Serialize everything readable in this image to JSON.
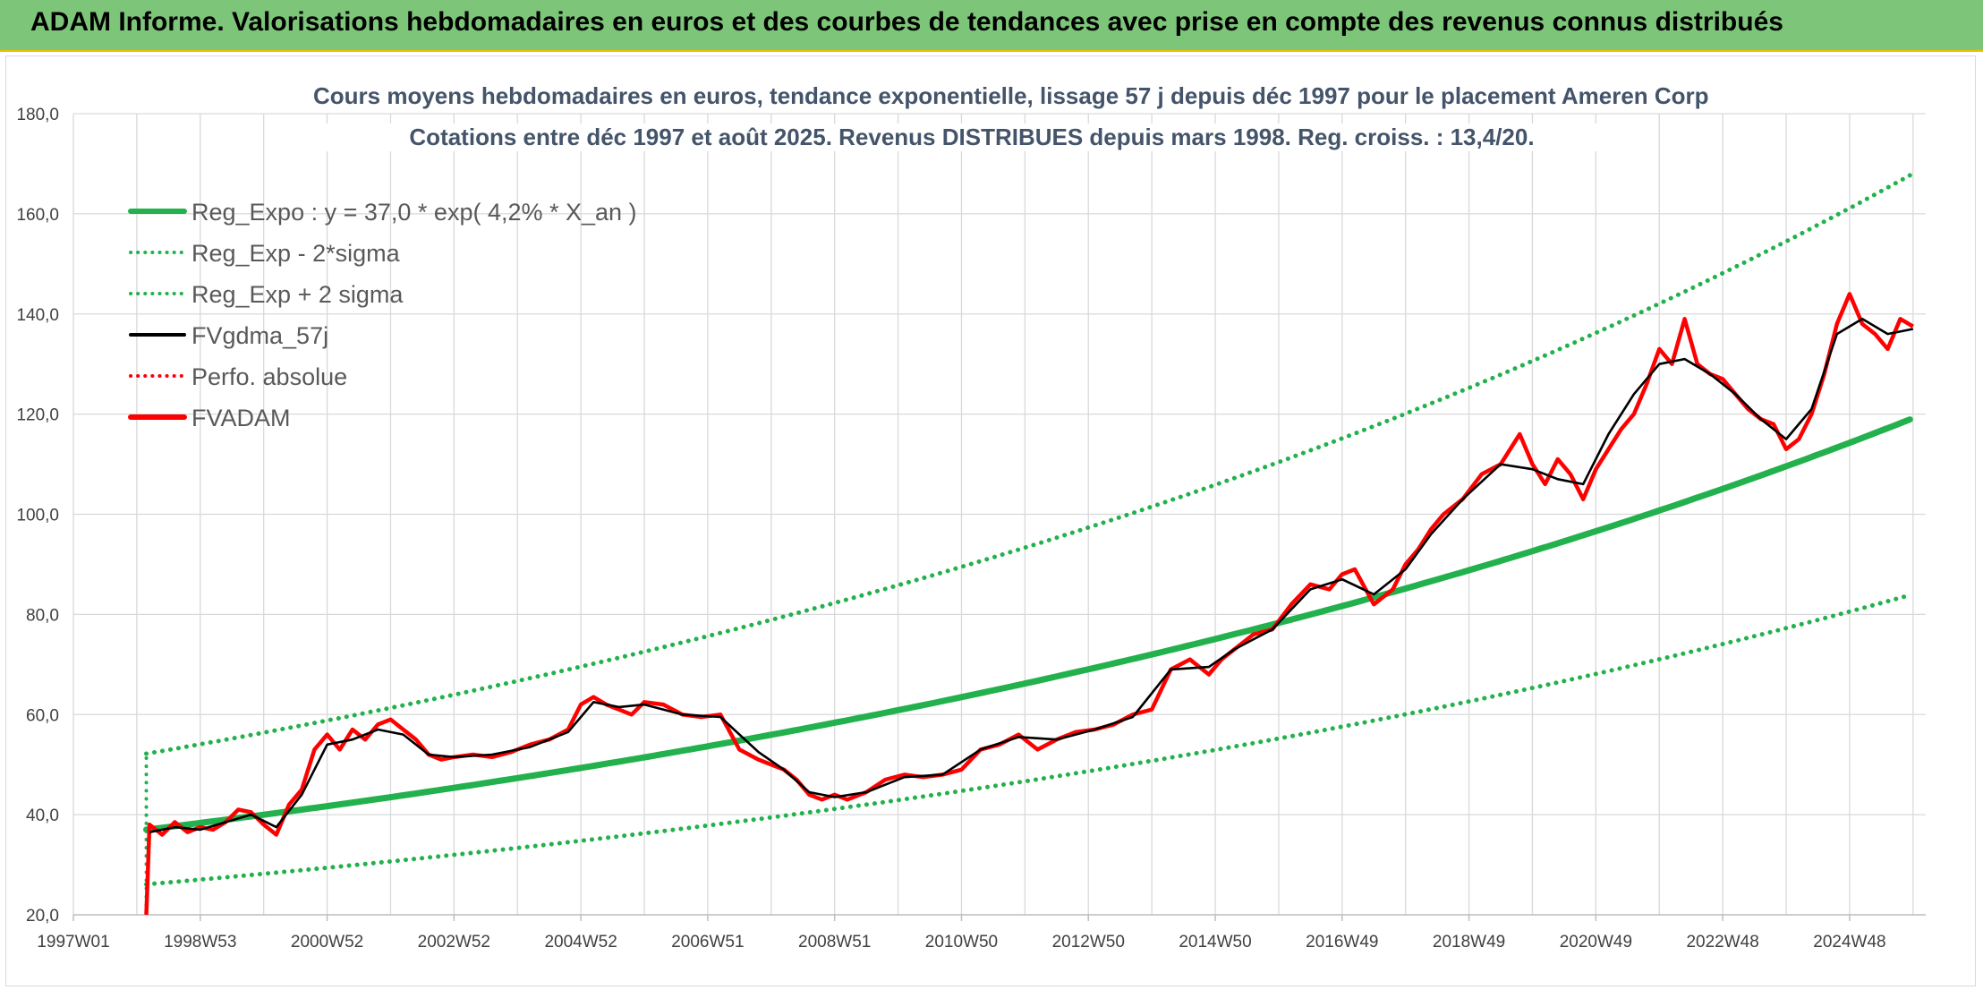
{
  "header": {
    "title": "ADAM Informe. Valorisations hebdomadaires en euros et des courbes de tendances avec prise en compte des revenus connus distribués"
  },
  "chart_data": {
    "type": "line",
    "title": "Cours moyens hebdomadaires en euros, tendance exponentielle, lissage 57 j depuis déc 1997 pour le placement Ameren Corp",
    "subtitle": "Cotations entre déc 1997 et août 2025. Revenus DISTRIBUES depuis mars 1998. Reg. croiss. : 13,4/20.",
    "xlabel": "",
    "ylabel": "",
    "ylim": [
      20,
      180
    ],
    "yticks": [
      20,
      40,
      60,
      80,
      100,
      120,
      140,
      160,
      180
    ],
    "ytick_labels": [
      "20,0",
      "40,0",
      "60,0",
      "80,0",
      "100,0",
      "120,0",
      "140,0",
      "160,0",
      "180,0"
    ],
    "xlim": [
      1997.0,
      2026.2
    ],
    "xticks": [
      1997.0,
      1999.0,
      2001.0,
      2003.0,
      2005.0,
      2007.0,
      2009.0,
      2011.0,
      2013.0,
      2015.0,
      2017.0,
      2019.0,
      2021.0,
      2023.0,
      2025.0
    ],
    "xtick_labels": [
      "1997W01",
      "1998W53",
      "2000W52",
      "2002W52",
      "2004W52",
      "2006W51",
      "2008W51",
      "2010W50",
      "2012W50",
      "2014W50",
      "2016W49",
      "2018W49",
      "2020W49",
      "2022W48",
      "2024W48"
    ],
    "grid": true,
    "legend_position": "top-left",
    "legend": [
      {
        "label": "Reg_Expo : y = 37,0 * exp( 4,2% *  X_an )",
        "color": "#22b14c",
        "style": "solid-thick"
      },
      {
        "label": "Reg_Exp - 2*sigma",
        "color": "#22b14c",
        "style": "dotted"
      },
      {
        "label": "Reg_Exp + 2 sigma",
        "color": "#22b14c",
        "style": "dotted"
      },
      {
        "label": "FVgdma_57j",
        "color": "#000000",
        "style": "solid"
      },
      {
        "label": "Perfo. absolue",
        "color": "#ff0000",
        "style": "dotted"
      },
      {
        "label": "FVADAM",
        "color": "#ff0000",
        "style": "solid-thick"
      }
    ],
    "x_start": 1998.15,
    "x_end": 2026.0,
    "reg_expo": {
      "a": 37.0,
      "growth": 0.042
    },
    "band": {
      "upper_factor": 1.41,
      "lower_factor": 0.705
    },
    "series": [
      {
        "name": "FVADAM",
        "color": "#ff0000",
        "x": [
          1998.15,
          1998.2,
          1998.4,
          1998.6,
          1998.8,
          1999.0,
          1999.2,
          1999.4,
          1999.6,
          1999.8,
          2000.0,
          2000.2,
          2000.4,
          2000.6,
          2000.8,
          2001.0,
          2001.2,
          2001.4,
          2001.6,
          2001.8,
          2002.0,
          2002.2,
          2002.4,
          2002.6,
          2002.8,
          2003.0,
          2003.3,
          2003.6,
          2003.9,
          2004.2,
          2004.5,
          2004.8,
          2005.0,
          2005.2,
          2005.4,
          2005.6,
          2005.8,
          2006.0,
          2006.3,
          2006.6,
          2006.9,
          2007.2,
          2007.5,
          2007.8,
          2008.0,
          2008.2,
          2008.4,
          2008.6,
          2008.8,
          2009.0,
          2009.2,
          2009.5,
          2009.8,
          2010.1,
          2010.4,
          2010.7,
          2011.0,
          2011.3,
          2011.6,
          2011.9,
          2012.2,
          2012.5,
          2012.8,
          2013.1,
          2013.4,
          2013.7,
          2014.0,
          2014.3,
          2014.6,
          2014.9,
          2015.1,
          2015.3,
          2015.6,
          2015.9,
          2016.2,
          2016.5,
          2016.8,
          2017.0,
          2017.2,
          2017.5,
          2017.8,
          2018.0,
          2018.2,
          2018.4,
          2018.6,
          2018.9,
          2019.2,
          2019.5,
          2019.8,
          2020.0,
          2020.2,
          2020.4,
          2020.6,
          2020.8,
          2021.0,
          2021.2,
          2021.4,
          2021.6,
          2021.8,
          2022.0,
          2022.2,
          2022.4,
          2022.6,
          2022.8,
          2023.0,
          2023.2,
          2023.4,
          2023.6,
          2023.8,
          2024.0,
          2024.2,
          2024.4,
          2024.6,
          2024.8,
          2025.0,
          2025.2,
          2025.4,
          2025.6,
          2025.8,
          2026.0
        ],
        "values": [
          20.0,
          38.0,
          36.0,
          38.5,
          36.5,
          37.5,
          37.0,
          38.5,
          41.0,
          40.5,
          38.0,
          36.0,
          42.0,
          45.0,
          53.0,
          56.0,
          53.0,
          57.0,
          55.0,
          58.0,
          59.0,
          57.0,
          55.0,
          52.0,
          51.0,
          51.5,
          52.0,
          51.5,
          52.5,
          54.0,
          55.0,
          57.0,
          62.0,
          63.5,
          62.0,
          61.0,
          60.0,
          62.5,
          62.0,
          60.0,
          59.5,
          60.0,
          53.0,
          51.0,
          50.0,
          49.0,
          47.0,
          44.0,
          43.0,
          44.0,
          43.0,
          44.5,
          47.0,
          48.0,
          47.5,
          48.0,
          49.0,
          53.0,
          54.0,
          56.0,
          53.0,
          55.0,
          56.5,
          57.0,
          58.0,
          60.0,
          61.0,
          69.0,
          71.0,
          68.0,
          71.0,
          73.0,
          76.0,
          77.0,
          82.0,
          86.0,
          85.0,
          88.0,
          89.0,
          82.0,
          85.0,
          90.0,
          93.0,
          97.0,
          100.0,
          103.0,
          108.0,
          110.0,
          116.0,
          110.0,
          106.0,
          111.0,
          108.0,
          103.0,
          109.0,
          113.0,
          117.0,
          120.0,
          126.0,
          133.0,
          130.0,
          139.0,
          130.0,
          128.0,
          127.0,
          124.0,
          121.0,
          119.0,
          118.0,
          113.0,
          115.0,
          120.0,
          128.0,
          138.0,
          144.0,
          138.0,
          136.0,
          133.0,
          139.0,
          137.5
        ]
      },
      {
        "name": "FVgdma_57j",
        "color": "#000000",
        "x": [
          1998.2,
          1998.6,
          1999.0,
          1999.4,
          1999.8,
          2000.2,
          2000.6,
          2001.0,
          2001.4,
          2001.8,
          2002.2,
          2002.6,
          2003.0,
          2003.6,
          2004.2,
          2004.8,
          2005.2,
          2005.6,
          2006.0,
          2006.6,
          2007.2,
          2007.8,
          2008.2,
          2008.6,
          2009.0,
          2009.5,
          2010.1,
          2010.7,
          2011.3,
          2011.9,
          2012.5,
          2013.1,
          2013.7,
          2014.3,
          2014.9,
          2015.3,
          2015.9,
          2016.5,
          2017.0,
          2017.5,
          2018.0,
          2018.4,
          2018.9,
          2019.5,
          2020.0,
          2020.4,
          2020.8,
          2021.2,
          2021.6,
          2022.0,
          2022.4,
          2022.8,
          2023.2,
          2023.6,
          2024.0,
          2024.4,
          2024.8,
          2025.2,
          2025.6,
          2026.0
        ],
        "values": [
          36.5,
          37.5,
          37.0,
          38.5,
          40.0,
          37.5,
          44.0,
          54.0,
          55.0,
          57.0,
          56.0,
          52.0,
          51.5,
          52.0,
          53.5,
          56.5,
          62.5,
          61.5,
          62.0,
          60.0,
          59.5,
          52.5,
          49.0,
          44.5,
          43.5,
          44.5,
          47.5,
          48.0,
          53.0,
          55.5,
          55.0,
          57.0,
          59.5,
          69.0,
          69.5,
          73.0,
          77.0,
          85.0,
          87.0,
          84.0,
          89.0,
          96.0,
          103.0,
          110.0,
          109.0,
          107.0,
          106.0,
          116.0,
          124.0,
          130.0,
          131.0,
          128.0,
          124.0,
          119.0,
          115.0,
          121.0,
          136.0,
          139.0,
          136.0,
          137.0
        ]
      }
    ]
  }
}
